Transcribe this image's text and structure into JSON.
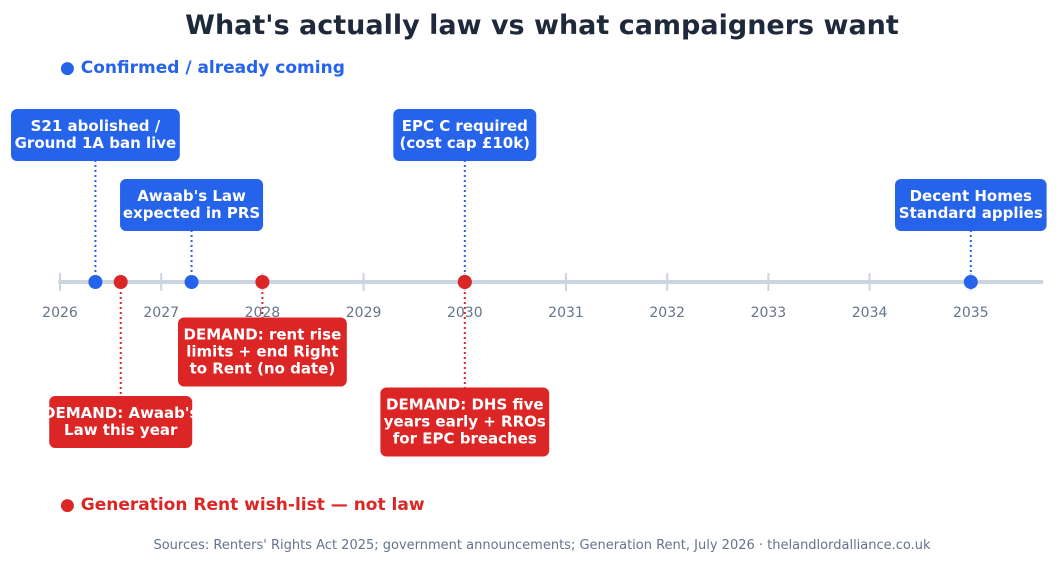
{
  "chart_data": {
    "type": "timeline",
    "title": "What's actually law vs what campaigners want",
    "xlim": [
      2026,
      2035.5
    ],
    "ticks": [
      "2026",
      "2027",
      "2028",
      "2029",
      "2030",
      "2031",
      "2032",
      "2033",
      "2034",
      "2035"
    ],
    "legend": [
      {
        "label": "● Confirmed / already coming",
        "color": "#2563eb",
        "placement": "top-left"
      },
      {
        "label": "● Generation Rent wish-list — not law",
        "color": "#dc2626",
        "placement": "bottom-left"
      }
    ],
    "events": [
      {
        "x": 2026.35,
        "group": "confirmed",
        "lines": [
          "S21 abolished /",
          "Ground 1A ban live"
        ],
        "side": "above",
        "tier": 2
      },
      {
        "x": 2027.3,
        "group": "confirmed",
        "lines": [
          "Awaab's Law",
          "expected in PRS"
        ],
        "side": "above",
        "tier": 1
      },
      {
        "x": 2030.0,
        "group": "confirmed",
        "lines": [
          "EPC C required",
          "(cost cap £10k)"
        ],
        "side": "above",
        "tier": 2
      },
      {
        "x": 2035.0,
        "group": "confirmed",
        "lines": [
          "Decent Homes",
          "Standard applies"
        ],
        "side": "above",
        "tier": 1
      },
      {
        "x": 2026.6,
        "group": "demand",
        "lines": [
          "DEMAND: Awaab's",
          "Law this year"
        ],
        "side": "below",
        "tier": 2
      },
      {
        "x": 2028.0,
        "group": "demand",
        "lines": [
          "DEMAND: rent rise",
          "limits + end Right",
          "to Rent (no date)"
        ],
        "side": "below",
        "tier": 1
      },
      {
        "x": 2030.0,
        "group": "demand",
        "lines": [
          "DEMAND: DHS five",
          "years early + RROs",
          "for EPC breaches"
        ],
        "side": "below",
        "tier": 2
      }
    ],
    "colors": {
      "confirmed": "#2563eb",
      "demand": "#dc2626",
      "axis": "#cbd5e1"
    }
  },
  "footer": {
    "source": "Sources: Renters' Rights Act 2025; government announcements; Generation Rent, July 2026  ·  thelandlordalliance.co.uk"
  }
}
